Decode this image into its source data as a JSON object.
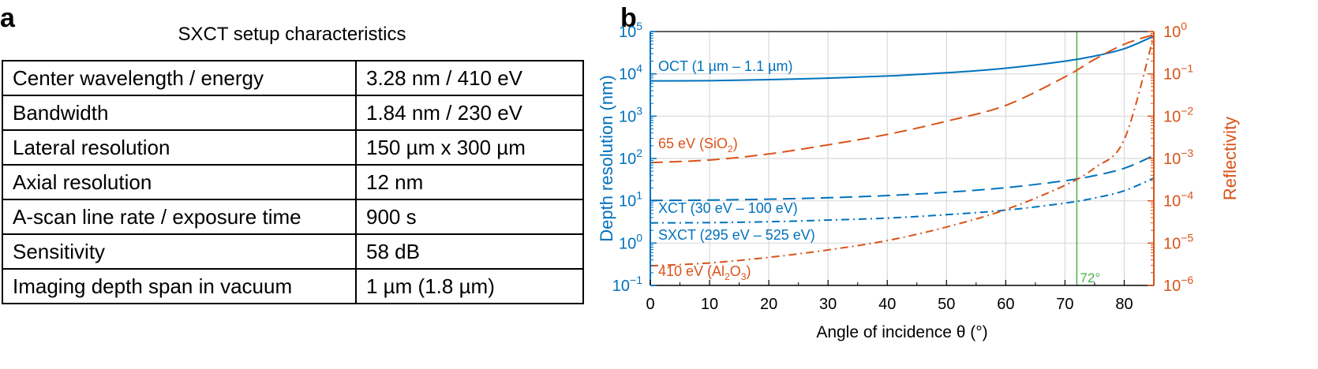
{
  "panels": {
    "a": "a",
    "b": "b"
  },
  "table": {
    "title": "SXCT setup characteristics",
    "rows": [
      {
        "label": "Center wavelength / energy",
        "value": "3.28 nm / 410 eV"
      },
      {
        "label": "Bandwidth",
        "value": "1.84 nm / 230 eV"
      },
      {
        "label": "Lateral resolution",
        "value": "150 µm x 300 µm"
      },
      {
        "label": "Axial resolution",
        "value": "12 nm"
      },
      {
        "label": "A-scan line rate / exposure time",
        "value": "900 s"
      },
      {
        "label": "Sensitivity",
        "value": "58 dB"
      },
      {
        "label": "Imaging depth span in vacuum",
        "value": "1 µm (1.8 µm)"
      }
    ]
  },
  "chart_data": {
    "type": "line",
    "xlabel": "Angle of incidence θ (°)",
    "xlim": [
      0,
      85
    ],
    "xticks": [
      0,
      10,
      20,
      30,
      40,
      50,
      60,
      70,
      80
    ],
    "ylabel_left": "Depth resolution (nm)",
    "yscale_left": "log",
    "ylim_left": [
      0.1,
      100000
    ],
    "yticks_left": [
      "10^-1",
      "10^0",
      "10^1",
      "10^2",
      "10^3",
      "10^4",
      "10^5"
    ],
    "ylabel_right": "Reflectivity",
    "yscale_right": "log",
    "ylim_right": [
      1e-06,
      1
    ],
    "yticks_right": [
      "10^-6",
      "10^-5",
      "10^-4",
      "10^-3",
      "10^-2",
      "10^-1",
      "10^0"
    ],
    "grid": true,
    "colors": {
      "depth": "#0072BD",
      "reflectivity": "#D95319",
      "marker": "#4DAF4A"
    },
    "vline": {
      "x": 72,
      "label": "72°"
    },
    "series": [
      {
        "name": "OCT (1 µm – 1.1 µm)",
        "axis": "left",
        "style": "solid",
        "color": "#0072BD",
        "x": [
          0,
          10,
          20,
          30,
          40,
          50,
          60,
          70,
          75,
          80,
          85
        ],
        "y": [
          6800,
          6900,
          7300,
          7900,
          8900,
          10600,
          13600,
          19900,
          26300,
          39200,
          78000
        ]
      },
      {
        "name": "XCT (30 eV – 100 eV)",
        "axis": "left",
        "style": "dashed",
        "color": "#0072BD",
        "x": [
          0,
          10,
          20,
          30,
          40,
          50,
          60,
          70,
          75,
          80,
          85
        ],
        "y": [
          10.2,
          10.4,
          10.9,
          11.8,
          13.3,
          15.9,
          20.4,
          29.8,
          39.4,
          58.7,
          117
        ]
      },
      {
        "name": "SXCT (295 eV – 525 eV)",
        "axis": "left",
        "style": "dashdot",
        "color": "#0072BD",
        "x": [
          0,
          10,
          20,
          30,
          40,
          50,
          60,
          70,
          75,
          80,
          85
        ],
        "y": [
          3.0,
          3.05,
          3.2,
          3.5,
          3.9,
          4.7,
          6.0,
          8.8,
          11.6,
          17.3,
          34.4
        ]
      },
      {
        "name": "65 eV (SiO2)",
        "axis": "right",
        "style": "dashed",
        "color": "#D95319",
        "x": [
          0,
          10,
          20,
          30,
          40,
          50,
          60,
          70,
          75,
          80,
          85
        ],
        "y": [
          0.0008,
          0.00092,
          0.00128,
          0.0021,
          0.0037,
          0.0076,
          0.018,
          0.085,
          0.22,
          0.5,
          0.85
        ]
      },
      {
        "name": "410 eV (Al2O3)",
        "axis": "right",
        "style": "dashdot",
        "color": "#D95319",
        "x": [
          0,
          10,
          20,
          30,
          40,
          50,
          60,
          70,
          75,
          80,
          85
        ],
        "y": [
          2.9e-06,
          3.4e-06,
          4.6e-06,
          6.9e-06,
          1.15e-05,
          2.4e-05,
          6.2e-05,
          0.000232,
          0.0006,
          0.0028,
          0.8
        ]
      }
    ],
    "annotations": [
      {
        "text": "OCT (1 µm – 1.1 µm)",
        "color": "#0072BD"
      },
      {
        "text": "65 eV (SiO",
        "sub": "2",
        "tail": ")",
        "color": "#D95319"
      },
      {
        "text": "XCT (30 eV – 100 eV)",
        "color": "#0072BD"
      },
      {
        "text": "SXCT (295 eV – 525 eV)",
        "color": "#0072BD"
      },
      {
        "text": "410 eV (Al",
        "sub": "2",
        "mid": "O",
        "sub2": "3",
        "tail": ")",
        "color": "#D95319"
      }
    ]
  }
}
